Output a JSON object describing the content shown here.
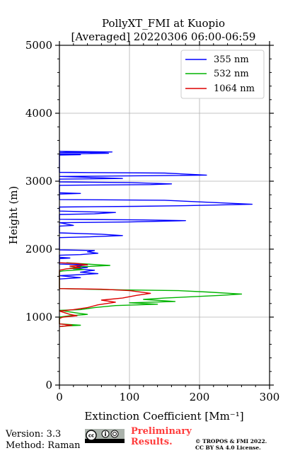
{
  "chart_data": {
    "type": "line",
    "title_line1": "PollyXT_FMI at Kuopio",
    "title_line2": "[Averaged] 20220306 06:00-06:59",
    "xlabel": "Extinction Coefficient [Mm⁻¹]",
    "ylabel": "Height (m)",
    "xlim": [
      0,
      300
    ],
    "ylim": [
      0,
      5000
    ],
    "x_ticks": [
      "0",
      "100",
      "200",
      "300"
    ],
    "y_ticks": [
      "0",
      "1000",
      "2000",
      "3000",
      "4000",
      "5000"
    ],
    "grid": true,
    "legend_position": "top-right",
    "series": [
      {
        "name": "355 nm",
        "color": "#0000ff",
        "points": [
          [
            0,
            3420
          ],
          [
            75,
            3430
          ],
          [
            0,
            3440
          ],
          [
            70,
            3410
          ],
          [
            0,
            3400
          ],
          [
            30,
            3390
          ],
          [
            0,
            3385
          ],
          [
            0,
            3130
          ],
          [
            150,
            3120
          ],
          [
            210,
            3090
          ],
          [
            120,
            3080
          ],
          [
            0,
            3070
          ],
          [
            90,
            3040
          ],
          [
            0,
            3030
          ],
          [
            0,
            2990
          ],
          [
            100,
            2980
          ],
          [
            160,
            2960
          ],
          [
            130,
            2950
          ],
          [
            0,
            2940
          ],
          [
            0,
            2830
          ],
          [
            30,
            2820
          ],
          [
            0,
            2810
          ],
          [
            0,
            2730
          ],
          [
            150,
            2720
          ],
          [
            275,
            2660
          ],
          [
            180,
            2640
          ],
          [
            110,
            2630
          ],
          [
            0,
            2620
          ],
          [
            0,
            2560
          ],
          [
            80,
            2540
          ],
          [
            50,
            2520
          ],
          [
            0,
            2510
          ],
          [
            0,
            2440
          ],
          [
            120,
            2430
          ],
          [
            180,
            2420
          ],
          [
            100,
            2400
          ],
          [
            0,
            2390
          ],
          [
            20,
            2350
          ],
          [
            0,
            2340
          ],
          [
            0,
            2240
          ],
          [
            60,
            2220
          ],
          [
            90,
            2200
          ],
          [
            40,
            2180
          ],
          [
            0,
            2170
          ],
          [
            0,
            1990
          ],
          [
            50,
            1980
          ],
          [
            40,
            1960
          ],
          [
            55,
            1940
          ],
          [
            30,
            1920
          ],
          [
            0,
            1910
          ],
          [
            0,
            1880
          ],
          [
            15,
            1870
          ],
          [
            0,
            1860
          ],
          [
            0,
            1780
          ],
          [
            40,
            1770
          ],
          [
            25,
            1750
          ],
          [
            40,
            1730
          ],
          [
            20,
            1710
          ],
          [
            50,
            1690
          ],
          [
            30,
            1660
          ],
          [
            55,
            1640
          ],
          [
            20,
            1620
          ],
          [
            0,
            1610
          ],
          [
            30,
            1580
          ],
          [
            0,
            1560
          ]
        ]
      },
      {
        "name": "532 nm",
        "color": "#00b400",
        "points": [
          [
            10,
            1800
          ],
          [
            40,
            1780
          ],
          [
            72,
            1760
          ],
          [
            30,
            1740
          ],
          [
            15,
            1720
          ],
          [
            35,
            1700
          ],
          [
            5,
            1680
          ],
          [
            0,
            1670
          ],
          [
            0,
            1420
          ],
          [
            90,
            1400
          ],
          [
            170,
            1390
          ],
          [
            210,
            1370
          ],
          [
            260,
            1340
          ],
          [
            230,
            1320
          ],
          [
            190,
            1300
          ],
          [
            150,
            1280
          ],
          [
            120,
            1260
          ],
          [
            165,
            1230
          ],
          [
            100,
            1210
          ],
          [
            140,
            1190
          ],
          [
            80,
            1170
          ],
          [
            50,
            1140
          ],
          [
            30,
            1110
          ],
          [
            0,
            1100
          ],
          [
            25,
            1060
          ],
          [
            40,
            1040
          ],
          [
            15,
            1020
          ],
          [
            0,
            1000
          ],
          [
            0,
            900
          ],
          [
            30,
            880
          ],
          [
            10,
            870
          ],
          [
            0,
            860
          ]
        ]
      },
      {
        "name": "1064 nm",
        "color": "#dd0000",
        "points": [
          [
            0,
            1800
          ],
          [
            25,
            1790
          ],
          [
            40,
            1770
          ],
          [
            15,
            1750
          ],
          [
            30,
            1730
          ],
          [
            10,
            1710
          ],
          [
            0,
            1690
          ],
          [
            0,
            1420
          ],
          [
            60,
            1410
          ],
          [
            100,
            1390
          ],
          [
            130,
            1350
          ],
          [
            110,
            1320
          ],
          [
            90,
            1280
          ],
          [
            60,
            1250
          ],
          [
            80,
            1220
          ],
          [
            55,
            1180
          ],
          [
            40,
            1140
          ],
          [
            20,
            1110
          ],
          [
            0,
            1090
          ],
          [
            15,
            1040
          ],
          [
            25,
            1020
          ],
          [
            5,
            1000
          ],
          [
            0,
            980
          ],
          [
            0,
            900
          ],
          [
            18,
            880
          ],
          [
            0,
            860
          ]
        ]
      }
    ]
  },
  "footer": {
    "version": "Version: 3.3",
    "method": "Method: Raman",
    "preliminary_line1": "Preliminary",
    "preliminary_line2": "Results.",
    "copyright_line1": "© TROPOS & FMI 2022.",
    "copyright_line2": "CC BY SA 4.0 License."
  }
}
